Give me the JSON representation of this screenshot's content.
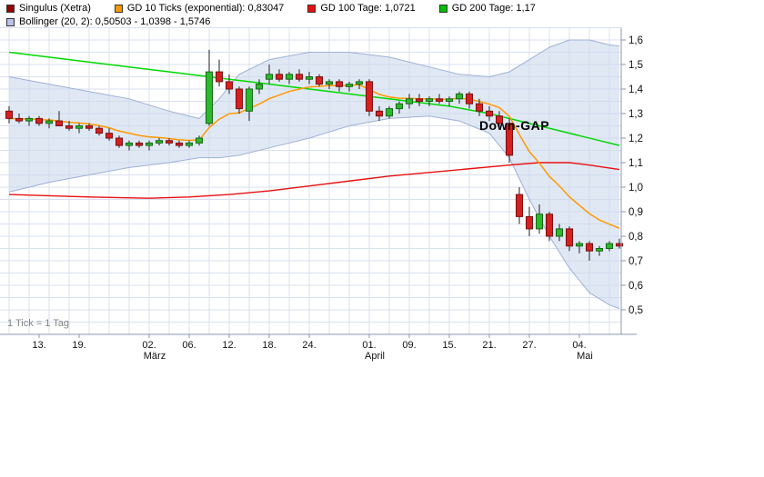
{
  "legend": {
    "rows": [
      [
        {
          "label": "Singulus (Xetra)",
          "color": "#990000"
        },
        {
          "label": "GD 10 Ticks (exponential): 0,83047",
          "color": "#ff9900"
        },
        {
          "label": "GD 100 Tage: 1,0721",
          "color": "#e81010"
        },
        {
          "label": "GD 200 Tage: 1,17",
          "color": "#00c000"
        }
      ],
      [
        {
          "label": "Bollinger (20, 2): 0,50503 - 1,0398 - 1,5746",
          "color": "#b7c3ea"
        }
      ]
    ]
  },
  "chart_data": {
    "type": "candlestick",
    "title": "Singulus (Xetra)",
    "tick_note": "1 Tick = 1 Tag",
    "y_range": {
      "min": 0.5,
      "max": 1.6,
      "label_step": 0.1,
      "grid_step": 0.05
    },
    "values": {
      "gd10_ticks_exponential": 0.83047,
      "gd100_tage": 1.0721,
      "gd200_tage": 1.17,
      "bollinger_20_2": [
        0.50503,
        1.0398,
        1.5746
      ]
    },
    "y_labels": [
      {
        "v": 1.6,
        "t": "1,6"
      },
      {
        "v": 1.5,
        "t": "1,5"
      },
      {
        "v": 1.4,
        "t": "1,4"
      },
      {
        "v": 1.3,
        "t": "1,3"
      },
      {
        "v": 1.2,
        "t": "1,2"
      },
      {
        "v": 1.1,
        "t": "1,1"
      },
      {
        "v": 1.0,
        "t": "1,0"
      },
      {
        "v": 0.9,
        "t": "0,9"
      },
      {
        "v": 0.8,
        "t": "0,8"
      },
      {
        "v": 0.7,
        "t": "0,7"
      },
      {
        "v": 0.6,
        "t": "0,6"
      },
      {
        "v": 0.5,
        "t": "0,5"
      }
    ],
    "x_ticks": [
      {
        "i": 3,
        "t": "13."
      },
      {
        "i": 7,
        "t": "19."
      },
      {
        "i": 14,
        "t": "02."
      },
      {
        "i": 18,
        "t": "06."
      },
      {
        "i": 22,
        "t": "12."
      },
      {
        "i": 26,
        "t": "18."
      },
      {
        "i": 30,
        "t": "24."
      },
      {
        "i": 36,
        "t": "01."
      },
      {
        "i": 40,
        "t": "09."
      },
      {
        "i": 44,
        "t": "15."
      },
      {
        "i": 48,
        "t": "21."
      },
      {
        "i": 52,
        "t": "27."
      },
      {
        "i": 57,
        "t": "04."
      }
    ],
    "months": [
      {
        "i": 14,
        "t": "März"
      },
      {
        "i": 36,
        "t": "April"
      },
      {
        "i": 57,
        "t": "Mai"
      }
    ],
    "candles": [
      [
        1.31,
        1.33,
        1.26,
        1.28
      ],
      [
        1.28,
        1.3,
        1.26,
        1.27
      ],
      [
        1.27,
        1.29,
        1.25,
        1.28
      ],
      [
        1.28,
        1.29,
        1.25,
        1.26
      ],
      [
        1.26,
        1.28,
        1.24,
        1.27
      ],
      [
        1.27,
        1.31,
        1.25,
        1.25
      ],
      [
        1.25,
        1.27,
        1.23,
        1.24
      ],
      [
        1.24,
        1.26,
        1.22,
        1.25
      ],
      [
        1.25,
        1.26,
        1.23,
        1.24
      ],
      [
        1.24,
        1.25,
        1.21,
        1.22
      ],
      [
        1.22,
        1.24,
        1.19,
        1.2
      ],
      [
        1.2,
        1.21,
        1.16,
        1.17
      ],
      [
        1.17,
        1.19,
        1.15,
        1.18
      ],
      [
        1.18,
        1.19,
        1.16,
        1.17
      ],
      [
        1.17,
        1.19,
        1.15,
        1.18
      ],
      [
        1.18,
        1.2,
        1.17,
        1.19
      ],
      [
        1.19,
        1.2,
        1.17,
        1.18
      ],
      [
        1.18,
        1.19,
        1.16,
        1.17
      ],
      [
        1.17,
        1.19,
        1.16,
        1.18
      ],
      [
        1.18,
        1.21,
        1.17,
        1.2
      ],
      [
        1.26,
        1.56,
        1.25,
        1.47
      ],
      [
        1.47,
        1.52,
        1.41,
        1.43
      ],
      [
        1.43,
        1.46,
        1.38,
        1.4
      ],
      [
        1.4,
        1.41,
        1.3,
        1.32
      ],
      [
        1.31,
        1.41,
        1.27,
        1.4
      ],
      [
        1.4,
        1.44,
        1.38,
        1.42
      ],
      [
        1.44,
        1.5,
        1.42,
        1.46
      ],
      [
        1.46,
        1.48,
        1.43,
        1.44
      ],
      [
        1.44,
        1.47,
        1.42,
        1.46
      ],
      [
        1.46,
        1.48,
        1.43,
        1.44
      ],
      [
        1.44,
        1.47,
        1.42,
        1.45
      ],
      [
        1.45,
        1.46,
        1.41,
        1.42
      ],
      [
        1.42,
        1.44,
        1.4,
        1.43
      ],
      [
        1.43,
        1.44,
        1.39,
        1.41
      ],
      [
        1.41,
        1.43,
        1.39,
        1.42
      ],
      [
        1.42,
        1.44,
        1.4,
        1.43
      ],
      [
        1.43,
        1.44,
        1.29,
        1.31
      ],
      [
        1.31,
        1.33,
        1.27,
        1.29
      ],
      [
        1.29,
        1.33,
        1.28,
        1.32
      ],
      [
        1.32,
        1.35,
        1.3,
        1.34
      ],
      [
        1.34,
        1.38,
        1.32,
        1.36
      ],
      [
        1.36,
        1.38,
        1.33,
        1.35
      ],
      [
        1.35,
        1.37,
        1.33,
        1.36
      ],
      [
        1.36,
        1.38,
        1.34,
        1.35
      ],
      [
        1.35,
        1.37,
        1.33,
        1.36
      ],
      [
        1.36,
        1.39,
        1.34,
        1.38
      ],
      [
        1.38,
        1.39,
        1.32,
        1.34
      ],
      [
        1.34,
        1.36,
        1.29,
        1.31
      ],
      [
        1.31,
        1.33,
        1.27,
        1.29
      ],
      [
        1.29,
        1.31,
        1.24,
        1.26
      ],
      [
        1.26,
        1.28,
        1.1,
        1.13
      ],
      [
        0.97,
        1.0,
        0.85,
        0.88
      ],
      [
        0.88,
        0.92,
        0.8,
        0.83
      ],
      [
        0.83,
        0.93,
        0.81,
        0.89
      ],
      [
        0.89,
        0.9,
        0.78,
        0.8
      ],
      [
        0.8,
        0.85,
        0.78,
        0.83
      ],
      [
        0.83,
        0.84,
        0.74,
        0.76
      ],
      [
        0.76,
        0.78,
        0.73,
        0.77
      ],
      [
        0.77,
        0.78,
        0.7,
        0.74
      ],
      [
        0.74,
        0.76,
        0.72,
        0.75
      ],
      [
        0.75,
        0.78,
        0.74,
        0.77
      ],
      [
        0.77,
        0.79,
        0.75,
        0.76
      ]
    ],
    "series": {
      "gd10": {
        "name": "GD 10 Ticks (exponential)",
        "color": "#ff9900",
        "period": 10
      },
      "gd100": {
        "name": "GD 100 Tage",
        "color": "#e81010",
        "points": [
          [
            0,
            0.97
          ],
          [
            8,
            0.96
          ],
          [
            14,
            0.955
          ],
          [
            18,
            0.96
          ],
          [
            22,
            0.97
          ],
          [
            26,
            0.985
          ],
          [
            30,
            1.005
          ],
          [
            34,
            1.025
          ],
          [
            38,
            1.045
          ],
          [
            42,
            1.06
          ],
          [
            46,
            1.075
          ],
          [
            50,
            1.09
          ],
          [
            53,
            1.1
          ],
          [
            56,
            1.1
          ],
          [
            58,
            1.09
          ],
          [
            61,
            1.072
          ]
        ]
      },
      "gd200": {
        "name": "GD 200 Tage",
        "color": "#00d800",
        "points": [
          [
            0,
            1.55
          ],
          [
            6,
            1.52
          ],
          [
            12,
            1.49
          ],
          [
            18,
            1.46
          ],
          [
            24,
            1.43
          ],
          [
            30,
            1.4
          ],
          [
            36,
            1.37
          ],
          [
            40,
            1.35
          ],
          [
            44,
            1.33
          ],
          [
            48,
            1.3
          ],
          [
            51,
            1.27
          ],
          [
            53,
            1.25
          ],
          [
            55,
            1.23
          ],
          [
            57,
            1.21
          ],
          [
            59,
            1.19
          ],
          [
            61,
            1.17
          ]
        ]
      },
      "bollinger": {
        "name": "Bollinger (20, 2)",
        "upper": [
          [
            0,
            1.45
          ],
          [
            4,
            1.42
          ],
          [
            8,
            1.39
          ],
          [
            12,
            1.36
          ],
          [
            16,
            1.31
          ],
          [
            19,
            1.28
          ],
          [
            21,
            1.36
          ],
          [
            23,
            1.46
          ],
          [
            26,
            1.52
          ],
          [
            30,
            1.55
          ],
          [
            34,
            1.55
          ],
          [
            38,
            1.53
          ],
          [
            42,
            1.49
          ],
          [
            45,
            1.46
          ],
          [
            48,
            1.45
          ],
          [
            50,
            1.47
          ],
          [
            52,
            1.52
          ],
          [
            54,
            1.57
          ],
          [
            56,
            1.6
          ],
          [
            58,
            1.6
          ],
          [
            60,
            1.58
          ],
          [
            61,
            1.575
          ]
        ],
        "lower": [
          [
            0,
            0.98
          ],
          [
            4,
            1.02
          ],
          [
            8,
            1.05
          ],
          [
            12,
            1.08
          ],
          [
            16,
            1.1
          ],
          [
            19,
            1.12
          ],
          [
            21,
            1.12
          ],
          [
            23,
            1.13
          ],
          [
            26,
            1.16
          ],
          [
            30,
            1.2
          ],
          [
            34,
            1.25
          ],
          [
            38,
            1.28
          ],
          [
            42,
            1.29
          ],
          [
            45,
            1.27
          ],
          [
            48,
            1.22
          ],
          [
            50,
            1.12
          ],
          [
            52,
            0.95
          ],
          [
            54,
            0.8
          ],
          [
            56,
            0.67
          ],
          [
            58,
            0.57
          ],
          [
            60,
            0.52
          ],
          [
            61,
            0.505
          ]
        ]
      }
    },
    "annotation": {
      "label": "Down-GAP",
      "i": 50.5,
      "price": 1.235
    },
    "colors": {
      "up": "#2eb82e",
      "down": "#d42020",
      "up_border": "#146914",
      "down_border": "#7c1010",
      "wick": "#222222",
      "grid": "#d9e0ee",
      "axis": "#8b97b5",
      "band_fill": "#ccd8ec",
      "band_edge": "#9fb0d4",
      "text": "#111111"
    }
  }
}
